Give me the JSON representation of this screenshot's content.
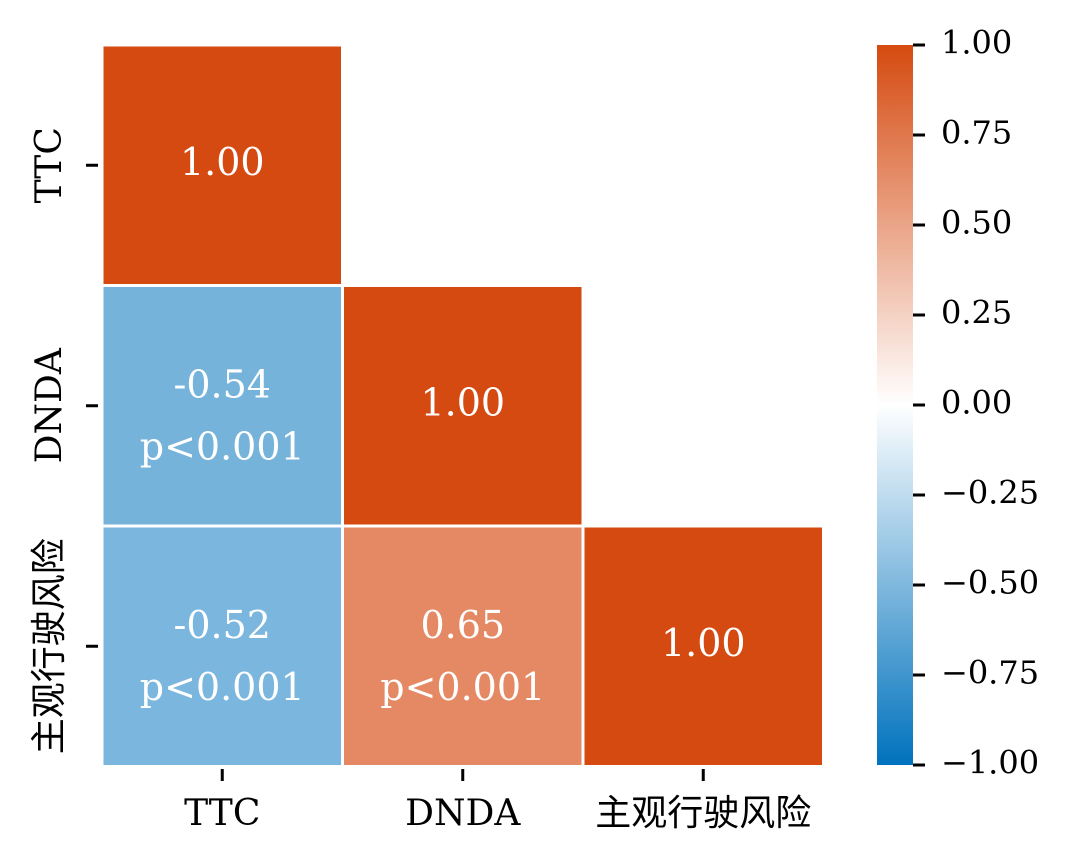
{
  "chart_data": {
    "type": "heatmap",
    "title": "",
    "variables": [
      "TTC",
      "DNDA",
      "主观行驶风险"
    ],
    "cells": [
      {
        "row": 0,
        "col": 0,
        "value": 1.0,
        "label": "1.00",
        "p_label": ""
      },
      {
        "row": 1,
        "col": 0,
        "value": -0.54,
        "label": "-0.54",
        "p_label": "p<0.001"
      },
      {
        "row": 1,
        "col": 1,
        "value": 1.0,
        "label": "1.00",
        "p_label": ""
      },
      {
        "row": 2,
        "col": 0,
        "value": -0.52,
        "label": "-0.52",
        "p_label": "p<0.001"
      },
      {
        "row": 2,
        "col": 1,
        "value": 0.65,
        "label": "0.65",
        "p_label": "p<0.001"
      },
      {
        "row": 2,
        "col": 2,
        "value": 1.0,
        "label": "1.00",
        "p_label": ""
      }
    ],
    "mask": "upper-triangle",
    "colorbar": {
      "range": [
        -1,
        1
      ],
      "ticks": [
        1.0,
        0.75,
        0.5,
        0.25,
        0.0,
        -0.25,
        -0.5,
        -0.75,
        -1.0
      ],
      "tick_labels": [
        "1.00",
        "0.75",
        "0.50",
        "0.25",
        "0.00",
        "−0.25",
        "−0.50",
        "−0.75",
        "−1.00"
      ],
      "colors": {
        "low": "#0072bd",
        "mid": "#ffffff",
        "high": "#d54a10"
      }
    }
  }
}
